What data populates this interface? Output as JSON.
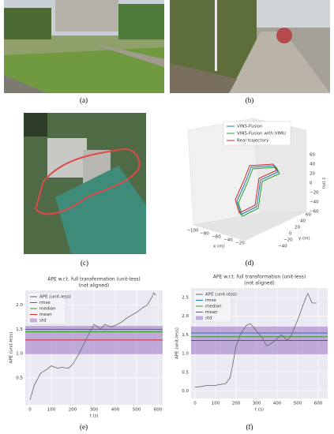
{
  "labels": [
    "(a)",
    "(b)",
    "(c)",
    "(d)",
    "(e)",
    "(f)"
  ],
  "panel_d": {
    "legend": [
      "VINS-Fusion",
      "VINS-Fusion with VIMU",
      "Real trajectory"
    ],
    "x_label": "x (m)",
    "y_label": "y (m)",
    "z_label": "z (m)",
    "x_ticks": [
      "−100",
      "−80",
      "−60",
      "−40",
      "−20"
    ],
    "y_ticks": [
      "−40",
      "−20",
      "0",
      "20",
      "40",
      "60"
    ],
    "z_ticks": [
      "60",
      "40",
      "20",
      "0",
      "−20",
      "−40",
      "−60"
    ]
  },
  "chart_data": [
    {
      "type": "line",
      "title": "APE w.r.t. full transformation (unit-less)",
      "subtitle": "(not aligned)",
      "x_label": "t (s)",
      "y_label": "APE (unit-less)",
      "x": [
        0,
        20,
        50,
        80,
        100,
        130,
        150,
        180,
        200,
        230,
        270,
        300,
        320,
        330,
        350,
        380,
        400,
        430,
        450,
        480,
        500,
        530,
        550,
        570,
        580,
        590
      ],
      "series": [
        {
          "name": "APE (unit-less)",
          "color": "#666666",
          "values": [
            0.05,
            0.35,
            0.6,
            0.68,
            0.75,
            0.7,
            0.72,
            0.7,
            0.78,
            1.0,
            1.35,
            1.6,
            1.55,
            1.5,
            1.6,
            1.55,
            1.58,
            1.65,
            1.72,
            1.8,
            1.85,
            1.95,
            2.0,
            2.15,
            2.25,
            2.2
          ]
        }
      ],
      "references": [
        {
          "name": "rmse",
          "color": "#1f77b4",
          "value": 1.5
        },
        {
          "name": "median",
          "color": "#2ca02c",
          "value": 1.45
        },
        {
          "name": "mean",
          "color": "#d62728",
          "value": 1.28
        }
      ],
      "std": {
        "name": "std",
        "color": "#9467bd",
        "value": 0.29
      },
      "xlim": [
        -22,
        622
      ],
      "ylim": [
        -0.05,
        2.3
      ],
      "xticks": [
        0,
        100,
        200,
        300,
        400,
        500,
        600
      ],
      "yticks": [
        0.5,
        {
          "value": 1,
          "label": "1.0"
        },
        1.5,
        {
          "value": 2,
          "label": "2.0"
        }
      ],
      "grid": true
    },
    {
      "type": "line",
      "title": "APE w.r.t. full transformation (unit-less)",
      "subtitle": "(not aligned)",
      "x_label": "t (s)",
      "y_label": "APE (unit-less)",
      "x": [
        0,
        30,
        60,
        100,
        150,
        170,
        180,
        200,
        220,
        250,
        270,
        300,
        330,
        350,
        380,
        400,
        420,
        450,
        470,
        500,
        520,
        540,
        550,
        570,
        590
      ],
      "series": [
        {
          "name": "APE (unit-less)",
          "color": "#666666",
          "values": [
            0.1,
            0.12,
            0.15,
            0.15,
            0.2,
            0.35,
            0.6,
            1.2,
            1.5,
            1.75,
            1.8,
            1.6,
            1.4,
            1.2,
            1.3,
            1.4,
            1.5,
            1.35,
            1.5,
            1.9,
            2.2,
            2.5,
            2.6,
            2.35,
            2.35
          ]
        }
      ],
      "references": [
        {
          "name": "rmse",
          "color": "#1f77b4",
          "value": 1.55
        },
        {
          "name": "median",
          "color": "#2ca02c",
          "value": 1.45
        },
        {
          "name": "mean",
          "color": "#d62728",
          "value": 1.35
        }
      ],
      "std": {
        "name": "std",
        "color": "#9467bd",
        "value": 0.37
      },
      "xlim": [
        -19,
        646
      ],
      "ylim": [
        -0.2,
        2.75
      ],
      "xticks": [
        0,
        100,
        200,
        300,
        400,
        500,
        600
      ],
      "yticks": [
        {
          "value": 0,
          "label": "0.0"
        },
        0.5,
        {
          "value": 1,
          "label": "1.0"
        },
        1.5,
        {
          "value": 2,
          "label": "2.0"
        },
        2.5
      ],
      "grid": true
    }
  ]
}
